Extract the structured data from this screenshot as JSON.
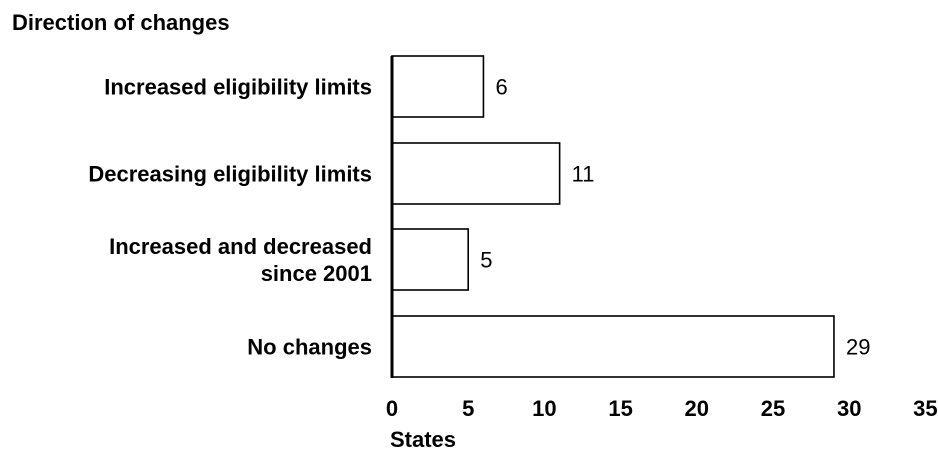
{
  "chart_data": {
    "type": "bar",
    "orientation": "horizontal",
    "ylabel": "Direction of changes",
    "xlabel": "States",
    "categories": [
      [
        "Increased eligibility limits"
      ],
      [
        "Decreasing eligibility limits"
      ],
      [
        "Increased and decreased",
        "since 2001"
      ],
      [
        "No changes"
      ]
    ],
    "values": [
      6,
      11,
      5,
      29
    ],
    "xlim": [
      0,
      35
    ],
    "xticks": [
      0,
      5,
      10,
      15,
      20,
      25,
      30,
      35
    ],
    "grid": false,
    "legend": "none",
    "colors": {
      "bar_fill": "#ffffff",
      "bar_stroke": "#000000",
      "axis": "#000000"
    }
  }
}
